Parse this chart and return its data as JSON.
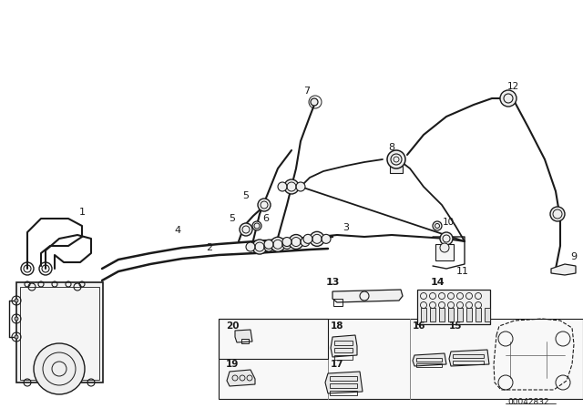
{
  "bg_color": "#ffffff",
  "line_color": "#1a1a1a",
  "diagram_id": "00042832",
  "fig_width": 6.4,
  "fig_height": 4.48,
  "dpi": 100
}
